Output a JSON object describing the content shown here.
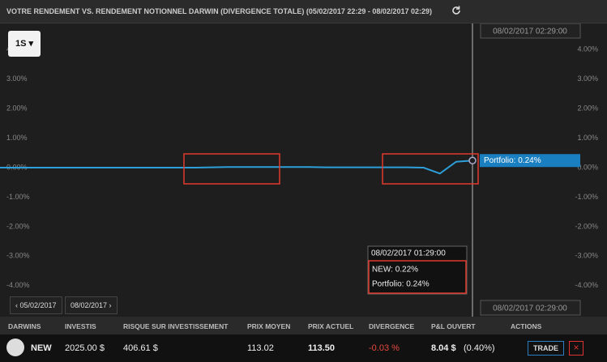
{
  "header": {
    "title": "VOTRE RENDEMENT VS. RENDEMENT NOTIONNEL DARWIN (DIVERGENCE TOTALE) (05/02/2017 22:29 - 08/02/2017 02:29)"
  },
  "timeframe": "1S",
  "chart_data": {
    "type": "line",
    "series": [
      {
        "name": "Portfolio",
        "color": "#2d9fd9",
        "values": [
          0,
          0,
          0,
          0,
          0,
          0,
          0,
          0,
          0,
          0,
          0,
          0,
          0,
          0.01,
          0.02,
          0.02,
          0.02,
          0.02,
          0.02,
          0.02,
          0.01,
          0.01,
          0.01,
          0.01,
          0.01,
          0.01,
          0,
          -0.2,
          0.2,
          0.24
        ]
      }
    ],
    "ylim": [
      -4.5,
      4.5
    ],
    "yticks": [
      {
        "value": -4,
        "label": "-4.00%"
      },
      {
        "value": -3,
        "label": "-3.00%"
      },
      {
        "value": -2,
        "label": "-2.00%"
      },
      {
        "value": -1,
        "label": "-1.00%"
      },
      {
        "value": 0,
        "label": "0.00%"
      },
      {
        "value": 1,
        "label": "1.00%"
      },
      {
        "value": 2,
        "label": "2.00%"
      },
      {
        "value": 3,
        "label": "3.00%"
      },
      {
        "value": 4,
        "label": "4.00%"
      }
    ],
    "last_label": "Portfolio: 0.24%",
    "cursor_label": "08/02/2017 02:29:00",
    "tooltip": {
      "date": "08/02/2017 01:29:00",
      "lines": [
        "NEW: 0.22%",
        "Portfolio: 0.24%"
      ]
    }
  },
  "nav": {
    "prev": "05/02/2017",
    "next": "08/02/2017"
  },
  "table": {
    "headers": [
      "DARWINS",
      "INVESTIS",
      "RISQUE SUR INVESTISSEMENT",
      "PRIX MOYEN",
      "PRIX ACTUEL",
      "DIVERGENCE",
      "P&L OUVERT",
      "ACTIONS"
    ],
    "row": {
      "darwin": "NEW",
      "investis": "2025.00 $",
      "risque": "406.61 $",
      "prix_moyen": "113.02",
      "prix_actuel": "113.50",
      "divergence": "-0.03 %",
      "pnl": "8.04 $",
      "pnl_pct": "(0.40%)",
      "action": "TRADE"
    }
  }
}
